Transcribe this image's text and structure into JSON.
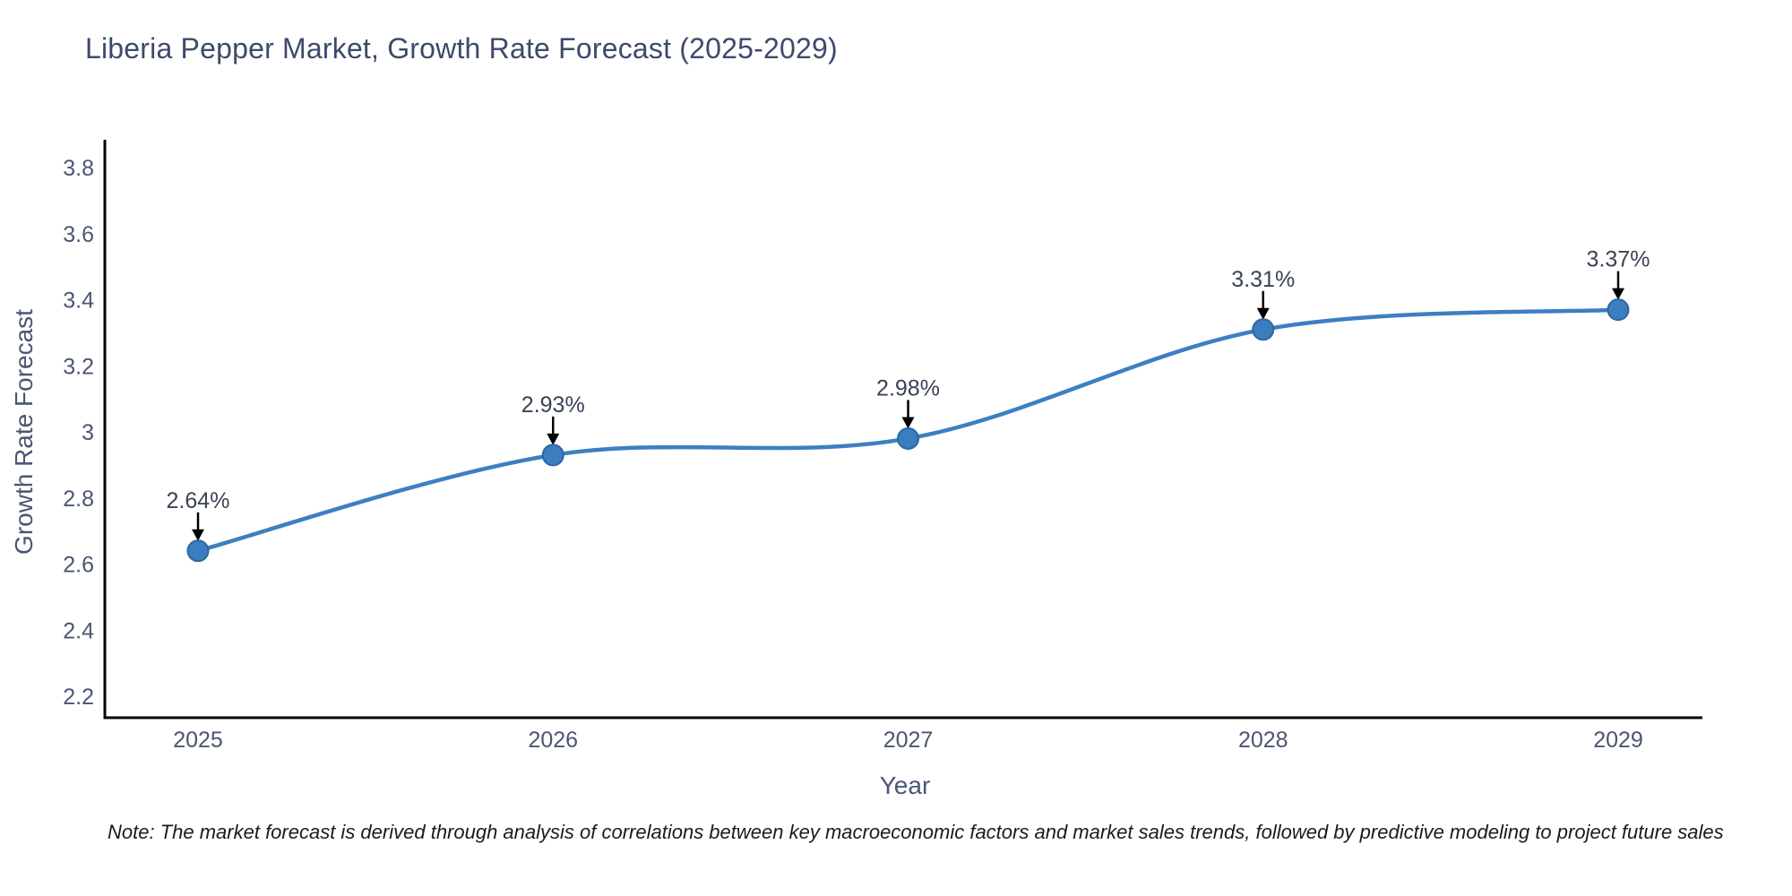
{
  "title": "Liberia Pepper Market, Growth Rate Forecast (2025-2029)",
  "note": "Note: The market forecast is derived through analysis of correlations between key macroeconomic factors and market sales trends, followed by predictive modeling to project future sales",
  "chart_data": {
    "type": "line",
    "title": "Liberia Pepper Market, Growth Rate Forecast (2025-2029)",
    "x": [
      2025,
      2026,
      2027,
      2028,
      2029
    ],
    "values": [
      2.64,
      2.93,
      2.98,
      3.31,
      3.37
    ],
    "point_labels": [
      "2.64%",
      "2.93%",
      "2.98%",
      "3.31%",
      "3.37%"
    ],
    "xlabel": "Year",
    "ylabel": "Growth Rate Forecast",
    "yticks": [
      2.2,
      2.4,
      2.6,
      2.8,
      3,
      3.2,
      3.4,
      3.6,
      3.8
    ],
    "ylim": [
      2.135,
      3.879
    ],
    "curve": "spline",
    "grid": false,
    "legend": "none",
    "line_color": "#3d7fc1",
    "marker_color": "#3b7ec0",
    "marker_edge_color": "#2e67a0",
    "axis_color": "#000000",
    "tick_label_color": "#4a5671",
    "annotation_color": "#3a4254",
    "annotation_arrow_color": "#000000",
    "title_color": "#3d4a6b"
  }
}
